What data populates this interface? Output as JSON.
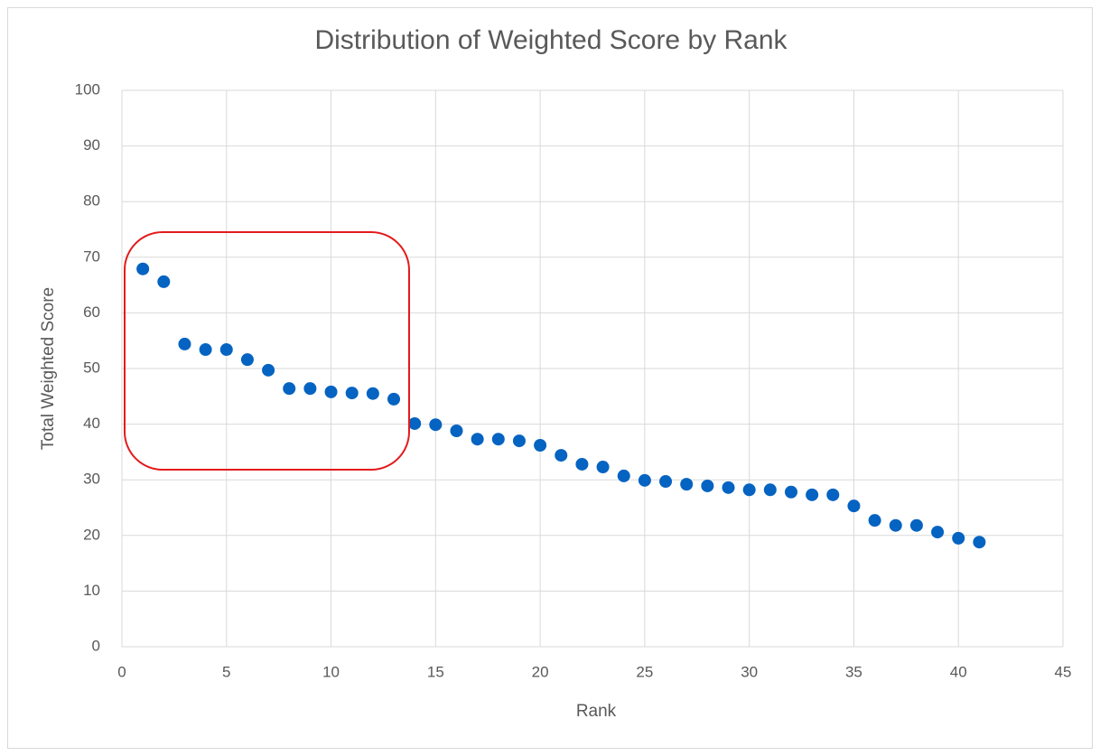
{
  "chart_data": {
    "type": "scatter",
    "title": "Distribution of Weighted Score by Rank",
    "x_label": "Rank",
    "y_label": "Total Weighted Score",
    "x": [
      1,
      2,
      3,
      4,
      5,
      6,
      7,
      8,
      9,
      10,
      11,
      12,
      13,
      14,
      15,
      16,
      17,
      18,
      19,
      20,
      21,
      22,
      23,
      24,
      25,
      26,
      27,
      28,
      29,
      30,
      31,
      32,
      33,
      34,
      35,
      36,
      37,
      38,
      39,
      40,
      41
    ],
    "values": [
      67.9,
      65.6,
      54.4,
      53.4,
      53.4,
      51.6,
      49.7,
      46.4,
      46.4,
      45.8,
      45.6,
      45.5,
      44.5,
      40.1,
      39.9,
      38.8,
      37.3,
      37.3,
      37.0,
      36.2,
      34.4,
      32.8,
      32.3,
      30.7,
      29.9,
      29.7,
      29.2,
      28.9,
      28.6,
      28.2,
      28.2,
      27.8,
      27.3,
      27.3,
      25.3,
      22.7,
      21.8,
      21.8,
      20.6,
      19.5,
      18.8
    ],
    "color": "#0563c1",
    "xlim": [
      0,
      45
    ],
    "xticks": [
      0,
      5,
      10,
      15,
      20,
      25,
      30,
      35,
      40,
      45
    ],
    "ylim": [
      0,
      100
    ],
    "yticks": [
      0,
      10,
      20,
      30,
      40,
      50,
      60,
      70,
      80,
      90,
      100
    ],
    "grid": true
  }
}
